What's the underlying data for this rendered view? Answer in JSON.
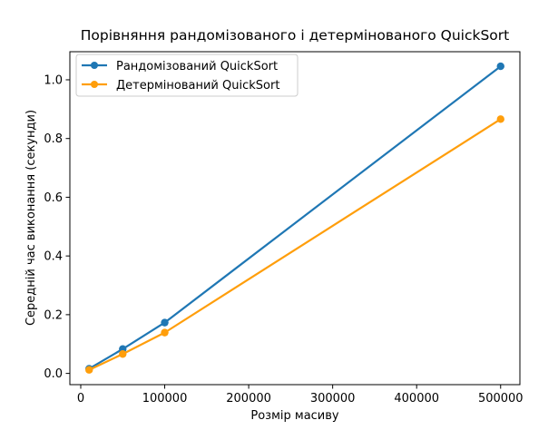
{
  "chart_data": {
    "type": "line",
    "title": "Порівняння рандомізованого і детермінованого QuickSort",
    "xlabel": "Розмір масиву",
    "ylabel": "Середній час виконання (секунди)",
    "xlim": [
      -12950,
      522950
    ],
    "ylim": [
      -0.0383,
      1.0957
    ],
    "x": [
      10000,
      50000,
      100000,
      500000
    ],
    "xticks": [
      0,
      100000,
      200000,
      300000,
      400000,
      500000
    ],
    "xtick_labels": [
      "0",
      "100000",
      "200000",
      "300000",
      "400000",
      "500000"
    ],
    "yticks": [
      0.0,
      0.2,
      0.4,
      0.6,
      0.8,
      1.0
    ],
    "ytick_labels": [
      "0.0",
      "0.2",
      "0.4",
      "0.6",
      "0.8",
      "1.0"
    ],
    "grid": false,
    "legend_position": "top-left",
    "series": [
      {
        "name": "Рандомізований QuickSort",
        "color": "#1f77b4",
        "values": [
          0.016,
          0.083,
          0.173,
          1.046
        ]
      },
      {
        "name": "Детермінований QuickSort",
        "color": "#ff9e0b",
        "values": [
          0.012,
          0.066,
          0.139,
          0.866
        ]
      }
    ]
  }
}
